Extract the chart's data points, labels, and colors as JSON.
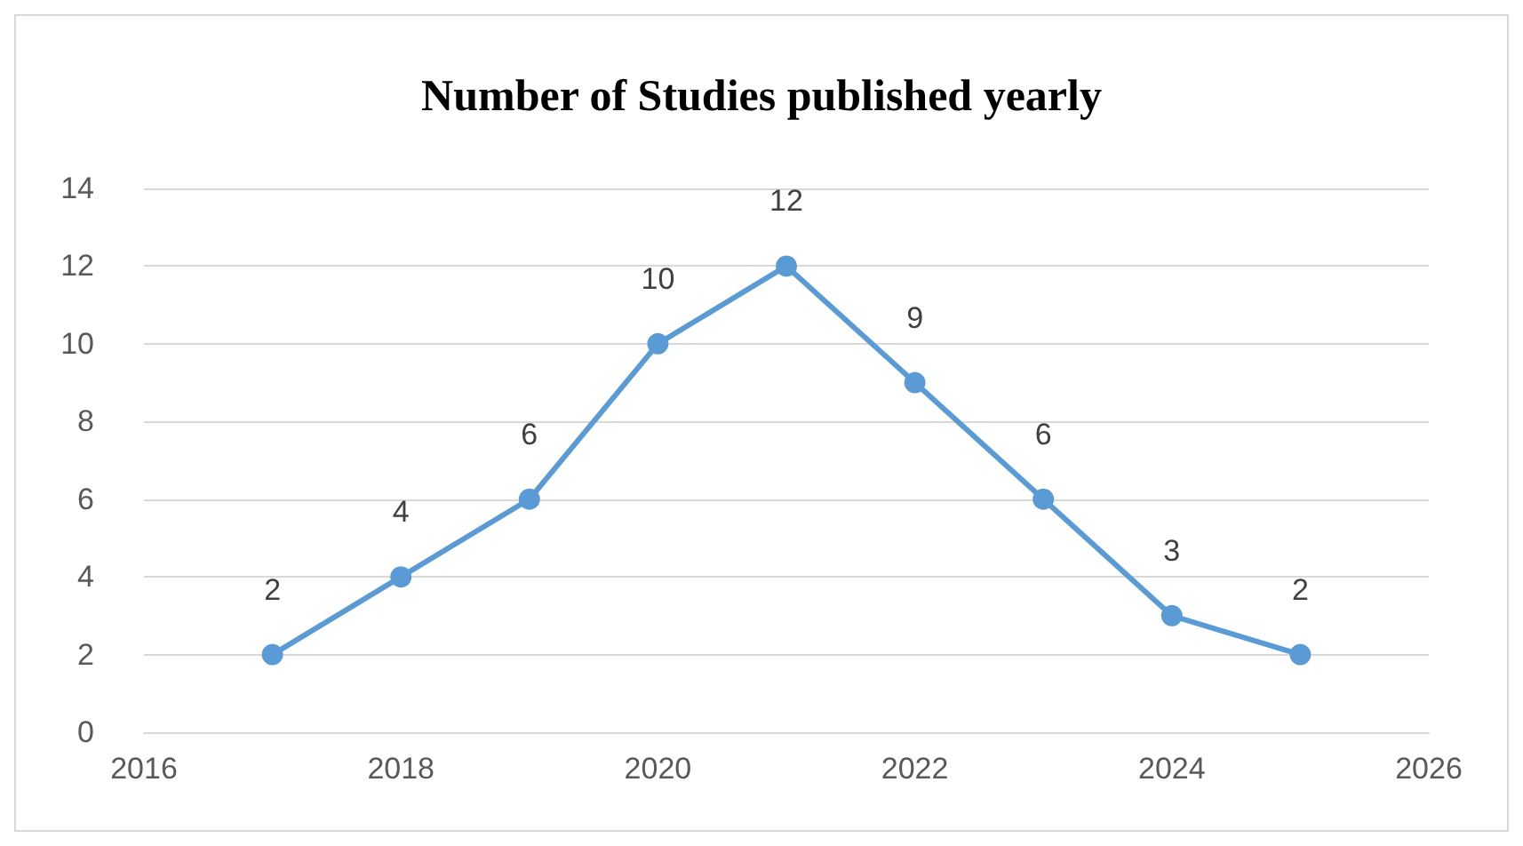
{
  "chart_data": {
    "type": "line",
    "title": "Number of Studies published yearly",
    "x": [
      2017,
      2018,
      2019,
      2020,
      2021,
      2022,
      2023,
      2024,
      2025
    ],
    "series": [
      {
        "color": "#5b9bd5",
        "values": [
          2,
          4,
          6,
          10,
          12,
          9,
          6,
          3,
          2
        ]
      }
    ],
    "xlim": [
      2016,
      2026
    ],
    "xticks": [
      2016,
      2018,
      2020,
      2022,
      2024,
      2026
    ],
    "ylim": [
      0,
      14
    ],
    "yticks": [
      0,
      2,
      4,
      6,
      8,
      10,
      12,
      14
    ],
    "grid": "y",
    "marker": "circle",
    "line_style": "solid",
    "data_labels": true
  }
}
